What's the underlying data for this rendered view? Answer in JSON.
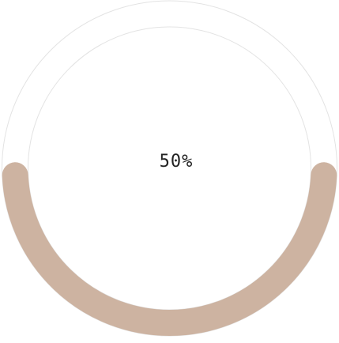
{
  "progress": {
    "label": "50%",
    "fraction": 0.5,
    "fill_color": "#cdb3a1",
    "track_color": "#e3e3e3"
  }
}
